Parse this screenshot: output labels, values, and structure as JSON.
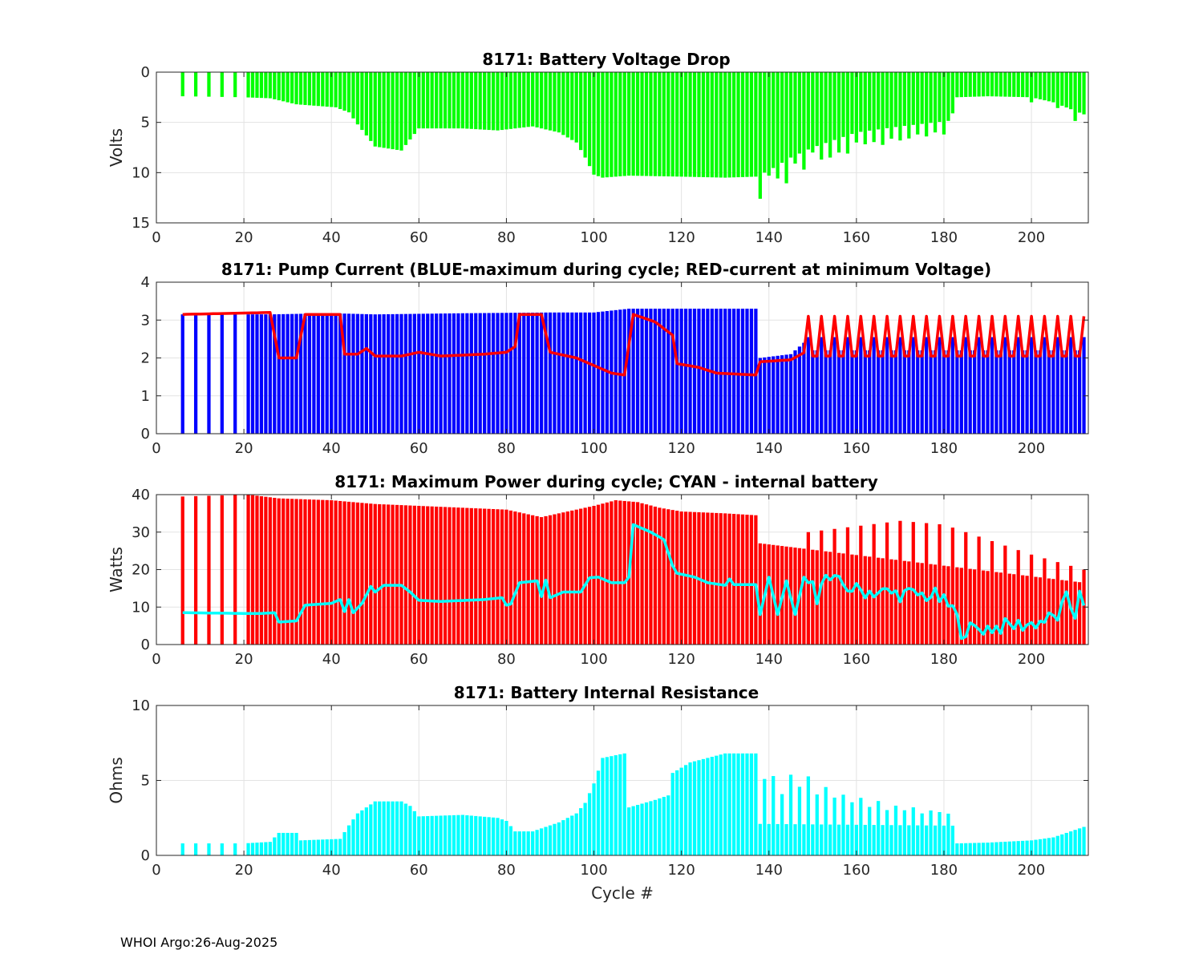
{
  "figure": {
    "footer": "WHOI Argo:26-Aug-2025",
    "xlabel": "Cycle #"
  },
  "chart_data": [
    {
      "type": "bar",
      "title": "8171: Battery Voltage Drop",
      "ylabel": "Volts",
      "xlim": [
        0,
        213
      ],
      "ylim": [
        0,
        15
      ],
      "y_reversed": true,
      "xticks": [
        0,
        20,
        40,
        60,
        80,
        100,
        120,
        140,
        160,
        180,
        200
      ],
      "yticks": [
        0,
        5,
        10,
        15
      ],
      "grid": true,
      "bar_color": "#00ff00",
      "x_start": 6,
      "x_end": 212,
      "missing_cycles": [
        7,
        8,
        10,
        11,
        13,
        14,
        16,
        17,
        19,
        20
      ],
      "profile": [
        [
          6,
          2.4
        ],
        [
          20,
          2.5
        ],
        [
          26,
          2.6
        ],
        [
          32,
          3.2
        ],
        [
          41,
          3.5
        ],
        [
          44,
          4.0
        ],
        [
          46,
          5.2
        ],
        [
          50,
          7.4
        ],
        [
          56,
          7.8
        ],
        [
          60,
          5.6
        ],
        [
          70,
          5.6
        ],
        [
          78,
          5.8
        ],
        [
          86,
          5.4
        ],
        [
          92,
          6.0
        ],
        [
          96,
          7.0
        ],
        [
          98,
          8.5
        ],
        [
          100,
          10.2
        ],
        [
          102,
          10.5
        ],
        [
          108,
          10.3
        ],
        [
          120,
          10.4
        ],
        [
          130,
          10.5
        ],
        [
          137,
          10.4
        ],
        [
          140,
          9.8
        ],
        [
          145,
          8.5
        ],
        [
          150,
          7.5
        ],
        [
          160,
          6.0
        ],
        [
          170,
          5.4
        ],
        [
          178,
          5.0
        ],
        [
          182,
          4.8
        ],
        [
          183,
          2.5
        ],
        [
          190,
          2.4
        ],
        [
          200,
          2.5
        ],
        [
          205,
          3.0
        ],
        [
          212,
          4.2
        ]
      ],
      "spikes": [
        [
          138,
          2.4
        ],
        [
          140,
          0.5
        ],
        [
          142,
          1.3
        ],
        [
          144,
          2.3
        ],
        [
          146,
          0.8
        ],
        [
          148,
          1.8
        ],
        [
          150,
          0.5
        ],
        [
          152,
          1.5
        ],
        [
          154,
          1.6
        ],
        [
          156,
          1.4
        ],
        [
          158,
          1.8
        ],
        [
          160,
          1.0
        ],
        [
          162,
          1.3
        ],
        [
          164,
          1.2
        ],
        [
          166,
          1.6
        ],
        [
          168,
          1.1
        ],
        [
          170,
          1.4
        ],
        [
          172,
          1.3
        ],
        [
          174,
          1.0
        ],
        [
          176,
          1.3
        ],
        [
          178,
          1.0
        ],
        [
          180,
          1.3
        ],
        [
          182,
          -0.7
        ],
        [
          200,
          0.5
        ],
        [
          206,
          0.4
        ],
        [
          210,
          1.0
        ]
      ]
    },
    {
      "type": "bar",
      "title": "8171: Pump Current (BLUE-maximum during cycle; RED-current at minimum Voltage)",
      "ylabel": "",
      "xlim": [
        0,
        213
      ],
      "ylim": [
        0,
        4
      ],
      "xticks": [
        0,
        20,
        40,
        60,
        80,
        100,
        120,
        140,
        160,
        180,
        200
      ],
      "yticks": [
        0,
        1,
        2,
        3,
        4
      ],
      "grid": true,
      "bar_color": "#0000ff",
      "line_color": "#ff0000",
      "x_start": 6,
      "x_end": 212,
      "missing_cycles": [
        7,
        8,
        10,
        11,
        13,
        14,
        16,
        17,
        19,
        20
      ],
      "profile": [
        [
          6,
          3.15
        ],
        [
          26,
          3.15
        ],
        [
          40,
          3.18
        ],
        [
          50,
          3.15
        ],
        [
          70,
          3.18
        ],
        [
          90,
          3.2
        ],
        [
          100,
          3.2
        ],
        [
          108,
          3.3
        ],
        [
          120,
          3.3
        ],
        [
          137,
          3.3
        ],
        [
          138,
          2.0
        ],
        [
          145,
          2.1
        ],
        [
          148,
          2.4
        ],
        [
          149,
          2.2
        ],
        [
          212,
          2.2
        ]
      ],
      "alt_high": 2.55,
      "alt_high_range": [
        149,
        212
      ],
      "line_profile": [
        [
          6,
          3.15
        ],
        [
          26,
          3.2
        ],
        [
          28,
          2.0
        ],
        [
          32,
          2.0
        ],
        [
          34,
          3.15
        ],
        [
          42,
          3.15
        ],
        [
          43,
          2.1
        ],
        [
          46,
          2.1
        ],
        [
          48,
          2.25
        ],
        [
          50,
          2.05
        ],
        [
          56,
          2.05
        ],
        [
          60,
          2.15
        ],
        [
          65,
          2.05
        ],
        [
          75,
          2.1
        ],
        [
          80,
          2.15
        ],
        [
          82,
          2.3
        ],
        [
          83,
          3.15
        ],
        [
          88,
          3.15
        ],
        [
          90,
          2.15
        ],
        [
          96,
          2.0
        ],
        [
          100,
          1.8
        ],
        [
          104,
          1.6
        ],
        [
          107,
          1.55
        ],
        [
          109,
          3.15
        ],
        [
          114,
          2.95
        ],
        [
          118,
          2.6
        ],
        [
          119,
          1.85
        ],
        [
          124,
          1.75
        ],
        [
          128,
          1.6
        ],
        [
          137,
          1.55
        ],
        [
          138,
          1.9
        ],
        [
          145,
          1.95
        ],
        [
          149,
          2.2
        ]
      ],
      "line_oscillation": {
        "from": 149,
        "to": 212,
        "period": 3,
        "high": 3.1,
        "low": 2.05
      }
    },
    {
      "type": "bar",
      "title": "8171: Maximum Power during cycle; CYAN - internal battery",
      "ylabel": "Watts",
      "xlim": [
        0,
        213
      ],
      "ylim": [
        0,
        40
      ],
      "xticks": [
        0,
        20,
        40,
        60,
        80,
        100,
        120,
        140,
        160,
        180,
        200
      ],
      "yticks": [
        0,
        10,
        20,
        30,
        40
      ],
      "grid": true,
      "bar_color": "#ff0000",
      "line_color": "#00ffff",
      "x_start": 6,
      "x_end": 212,
      "missing_cycles": [
        7,
        8,
        10,
        11,
        13,
        14,
        16,
        17,
        19,
        20
      ],
      "profile": [
        [
          6,
          39.5
        ],
        [
          21,
          40
        ],
        [
          28,
          39
        ],
        [
          40,
          38.5
        ],
        [
          50,
          37.5
        ],
        [
          60,
          37
        ],
        [
          70,
          36.5
        ],
        [
          80,
          36
        ],
        [
          84,
          35
        ],
        [
          88,
          34
        ],
        [
          92,
          35
        ],
        [
          96,
          36
        ],
        [
          100,
          37
        ],
        [
          105,
          38.5
        ],
        [
          110,
          38
        ],
        [
          115,
          36.5
        ],
        [
          120,
          35.5
        ],
        [
          130,
          35
        ],
        [
          137,
          34.5
        ],
        [
          138,
          27
        ],
        [
          212,
          16.5
        ]
      ],
      "alt_spikes": {
        "from": 149,
        "to": 212,
        "period": 3,
        "high_profile": [
          [
            149,
            30
          ],
          [
            170,
            33
          ],
          [
            180,
            32
          ],
          [
            190,
            28
          ],
          [
            200,
            24
          ],
          [
            212,
            20
          ]
        ]
      },
      "line_profile": [
        [
          6,
          8.5
        ],
        [
          20,
          8.3
        ],
        [
          24,
          8.3
        ],
        [
          27,
          8.5
        ],
        [
          28,
          6.0
        ],
        [
          32,
          6.3
        ],
        [
          34,
          10.5
        ],
        [
          40,
          11.0
        ],
        [
          42,
          12.0
        ],
        [
          43,
          8.8
        ],
        [
          44,
          12.0
        ],
        [
          45,
          8.5
        ],
        [
          47,
          11.0
        ],
        [
          49,
          15.5
        ],
        [
          50,
          14.0
        ],
        [
          52,
          15.8
        ],
        [
          56,
          15.8
        ],
        [
          58,
          14.0
        ],
        [
          60,
          11.8
        ],
        [
          65,
          11.5
        ],
        [
          75,
          12.0
        ],
        [
          79,
          12.5
        ],
        [
          80,
          10.5
        ],
        [
          81,
          10.8
        ],
        [
          83,
          16.5
        ],
        [
          87,
          17.0
        ],
        [
          88,
          12.8
        ],
        [
          89,
          17.2
        ],
        [
          90,
          12.5
        ],
        [
          93,
          14.0
        ],
        [
          97,
          14.0
        ],
        [
          99,
          17.8
        ],
        [
          101,
          18.0
        ],
        [
          104,
          16.5
        ],
        [
          107,
          16.5
        ],
        [
          108,
          18.0
        ],
        [
          109,
          32.0
        ],
        [
          113,
          30.0
        ],
        [
          116,
          28.0
        ],
        [
          118,
          21.0
        ],
        [
          119,
          19.0
        ],
        [
          123,
          18.0
        ],
        [
          126,
          16.5
        ],
        [
          130,
          15.8
        ],
        [
          131,
          17.5
        ],
        [
          132,
          16.0
        ],
        [
          137,
          16.0
        ],
        [
          138,
          8.0
        ],
        [
          140,
          18.0
        ],
        [
          142,
          8.0
        ],
        [
          144,
          17.0
        ],
        [
          146,
          8.0
        ],
        [
          148,
          18.0
        ],
        [
          150,
          15.0
        ],
        [
          151,
          13.0
        ],
        [
          152,
          18.0
        ],
        [
          160,
          14.5
        ],
        [
          170,
          13.5
        ],
        [
          178,
          13.0
        ],
        [
          182,
          9.5
        ],
        [
          184,
          3.8
        ],
        [
          200,
          5.5
        ],
        [
          206,
          7.5
        ],
        [
          208,
          12.0
        ],
        [
          210,
          8.0
        ],
        [
          211,
          15.5
        ],
        [
          212,
          9.0
        ]
      ],
      "line_noise": {
        "from": 150,
        "to": 212,
        "amp": 2.2
      }
    },
    {
      "type": "bar",
      "title": "8171: Battery Internal Resistance",
      "ylabel": "Ohms",
      "xlim": [
        0,
        213
      ],
      "ylim": [
        0,
        10
      ],
      "xticks": [
        0,
        20,
        40,
        60,
        80,
        100,
        120,
        140,
        160,
        180,
        200
      ],
      "yticks": [
        0,
        5,
        10
      ],
      "grid": true,
      "bar_color": "#00ffff",
      "x_start": 6,
      "x_end": 212,
      "missing_cycles": [
        7,
        8,
        10,
        11,
        13,
        14,
        16,
        17,
        19,
        20
      ],
      "profile": [
        [
          6,
          0.8
        ],
        [
          20,
          0.8
        ],
        [
          26,
          0.9
        ],
        [
          28,
          1.5
        ],
        [
          32,
          1.5
        ],
        [
          33,
          1.0
        ],
        [
          42,
          1.1
        ],
        [
          44,
          2.0
        ],
        [
          46,
          2.8
        ],
        [
          50,
          3.6
        ],
        [
          56,
          3.6
        ],
        [
          58,
          3.3
        ],
        [
          60,
          2.6
        ],
        [
          70,
          2.7
        ],
        [
          78,
          2.5
        ],
        [
          80,
          2.3
        ],
        [
          82,
          1.6
        ],
        [
          86,
          1.6
        ],
        [
          92,
          2.2
        ],
        [
          96,
          2.8
        ],
        [
          98,
          3.5
        ],
        [
          100,
          4.8
        ],
        [
          102,
          6.5
        ],
        [
          107,
          6.8
        ],
        [
          108,
          3.2
        ],
        [
          114,
          3.7
        ],
        [
          117,
          4.0
        ],
        [
          118,
          5.5
        ],
        [
          122,
          6.2
        ],
        [
          126,
          6.5
        ],
        [
          130,
          6.8
        ],
        [
          137,
          6.8
        ],
        [
          138,
          2.1
        ],
        [
          212,
          1.9
        ]
      ],
      "spikes": [
        [
          139,
          3.0
        ],
        [
          141,
          3.2
        ],
        [
          143,
          2.0
        ],
        [
          145,
          3.3
        ],
        [
          147,
          2.5
        ],
        [
          149,
          3.2
        ],
        [
          151,
          2.0
        ],
        [
          153,
          2.5
        ],
        [
          155,
          1.8
        ],
        [
          157,
          2.0
        ],
        [
          159,
          1.5
        ],
        [
          161,
          1.8
        ],
        [
          163,
          1.2
        ],
        [
          165,
          1.6
        ],
        [
          167,
          1.0
        ],
        [
          169,
          1.3
        ],
        [
          171,
          1.0
        ],
        [
          173,
          1.2
        ],
        [
          175,
          0.8
        ],
        [
          177,
          1.0
        ],
        [
          179,
          0.9
        ],
        [
          181,
          0.8
        ]
      ],
      "tail_profile": [
        [
          183,
          0.8
        ],
        [
          190,
          0.85
        ],
        [
          200,
          1.0
        ],
        [
          205,
          1.2
        ],
        [
          212,
          1.9
        ]
      ]
    }
  ]
}
